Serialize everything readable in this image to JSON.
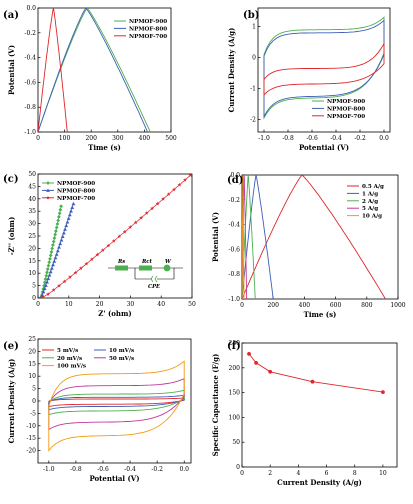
{
  "chart_data": [
    {
      "panel": "(a)",
      "type": "line",
      "xlabel": "Time (s)",
      "ylabel": "Potential (V)",
      "xlim": [
        0,
        500
      ],
      "ylim": [
        -1.0,
        0.0
      ],
      "xticks": [
        "0",
        "100",
        "200",
        "300",
        "400",
        "500"
      ],
      "yticks": [
        "-1.0",
        "-0.8",
        "-0.6",
        "-0.4",
        "-0.2",
        "0.0"
      ],
      "legend_position": "top-right",
      "series": [
        {
          "name": "NPMOF-900",
          "color": "#4caf50",
          "shape": "gcd",
          "t_peak": 185,
          "t_end": 422
        },
        {
          "name": "NPMOF-800",
          "color": "#3d5fb8",
          "shape": "gcd",
          "t_peak": 180,
          "t_end": 412
        },
        {
          "name": "NPMOF-700",
          "color": "#e0262a",
          "shape": "gcd",
          "t_peak": 58,
          "t_end": 110
        }
      ]
    },
    {
      "panel": "(b)",
      "type": "line",
      "xlabel": "Potential (V)",
      "ylabel": "Current Density (A/g)",
      "xlim": [
        -1.05,
        0.05
      ],
      "ylim": [
        -2.4,
        1.6
      ],
      "xticks": [
        "-1.0",
        "-0.8",
        "-0.6",
        "-0.4",
        "-0.2",
        "0.0"
      ],
      "yticks": [
        "-2",
        "-1",
        "0",
        "1"
      ],
      "legend_position": "bottom-right",
      "series": [
        {
          "name": "NPMOF-900",
          "color": "#4caf50",
          "shape": "cv",
          "top": 0.9,
          "bottom": -1.3,
          "top_start": 0.1,
          "bottom_start": -1.95,
          "top_end": 1.3,
          "bottom_end": 0.15
        },
        {
          "name": "NPMOF-800",
          "color": "#3d5fb8",
          "shape": "cv",
          "top": 0.8,
          "bottom": -1.25,
          "top_start": 0.05,
          "bottom_start": -1.9,
          "top_end": 1.2,
          "bottom_end": 0.1
        },
        {
          "name": "NPMOF-700",
          "color": "#e0262a",
          "shape": "cv",
          "top": -0.35,
          "bottom": -0.85,
          "top_start": -0.7,
          "bottom_start": -1.2,
          "top_end": 0.45,
          "bottom_end": -0.2
        }
      ]
    },
    {
      "panel": "(c)",
      "type": "scatter",
      "xlabel": "Z' (ohm)",
      "ylabel": "-Z'' (ohm)",
      "xlim": [
        0,
        50
      ],
      "ylim": [
        0,
        50
      ],
      "xticks": [
        "0",
        "10",
        "20",
        "30",
        "40",
        "50"
      ],
      "yticks": [
        "0",
        "5",
        "10",
        "15",
        "20",
        "25",
        "30",
        "35",
        "40",
        "45",
        "50"
      ],
      "legend_position": "top-left",
      "circuit": {
        "labels": [
          "Rs",
          "Rct",
          "W",
          "CPE"
        ]
      },
      "series": [
        {
          "name": "NPMOF-900",
          "color": "#4caf50",
          "marker": "diamond",
          "x_start": 1.0,
          "x_end": 7.5,
          "y_end": 37
        },
        {
          "name": "NPMOF-800",
          "color": "#3d5fb8",
          "marker": "triangle",
          "x_start": 1.0,
          "x_end": 11.5,
          "y_end": 38
        },
        {
          "name": "NPMOF-700",
          "color": "#e0262a",
          "marker": "star",
          "x_start": 1.5,
          "x_end": 49.5,
          "y_end": 49.5
        }
      ]
    },
    {
      "panel": "(d)",
      "type": "line",
      "xlabel": "Time (s)",
      "ylabel": "Potential (V)",
      "xlim": [
        0,
        1000
      ],
      "ylim": [
        -1.0,
        0.0
      ],
      "xticks": [
        "0",
        "200",
        "400",
        "600",
        "800",
        "1000"
      ],
      "yticks": [
        "-1.0",
        "-0.8",
        "-0.6",
        "-0.4",
        "-0.2",
        "0.0"
      ],
      "legend_position": "top-right",
      "series": [
        {
          "name": "0.5 A/g",
          "color": "#e0262a",
          "shape": "gcd",
          "t_peak": 385,
          "t_end": 920
        },
        {
          "name": "1 A/g",
          "color": "#3d5fb8",
          "shape": "gcd",
          "t_peak": 90,
          "t_end": 200
        },
        {
          "name": "2 A/g",
          "color": "#4caf50",
          "shape": "gcd",
          "t_peak": 40,
          "t_end": 85
        },
        {
          "name": "5 A/g",
          "color": "#c0389c",
          "shape": "gcd",
          "t_peak": 14,
          "t_end": 30
        },
        {
          "name": "10 A/g",
          "color": "#f39c12",
          "shape": "gcd",
          "t_peak": 6,
          "t_end": 13
        }
      ]
    },
    {
      "panel": "(e)",
      "type": "line",
      "xlabel": "Potential (V)",
      "ylabel": "Current Density (A/g)",
      "xlim": [
        -1.08,
        0.05
      ],
      "ylim": [
        -25,
        25
      ],
      "xticks": [
        "-1.0",
        "-0.8",
        "-0.6",
        "-0.4",
        "-0.2",
        "0.0"
      ],
      "yticks": [
        "-20",
        "-15",
        "-10",
        "-5",
        "0",
        "5",
        "10",
        "15",
        "20",
        "25"
      ],
      "legend_position": "top-left",
      "series": [
        {
          "name": "5 mV/s",
          "color": "#e0262a",
          "shape": "cv",
          "top": 0.8,
          "bottom": -1.3,
          "top_start": 0.0,
          "bottom_start": -2.2,
          "top_end": 1.2,
          "bottom_end": 0.3
        },
        {
          "name": "10 mV/s",
          "color": "#3d5fb8",
          "shape": "cv",
          "top": 1.5,
          "bottom": -2.2,
          "top_start": -0.2,
          "bottom_start": -3.5,
          "top_end": 2.3,
          "bottom_end": 0.5
        },
        {
          "name": "20 mV/s",
          "color": "#4caf50",
          "shape": "cv",
          "top": 2.8,
          "bottom": -4.0,
          "top_start": -0.5,
          "bottom_start": -5.5,
          "top_end": 4.3,
          "bottom_end": 1.0
        },
        {
          "name": "50 mV/s",
          "color": "#c0389c",
          "shape": "cv",
          "top": 6.2,
          "bottom": -8.5,
          "top_start": -1.0,
          "bottom_start": -11.5,
          "top_end": 9.0,
          "bottom_end": 2.0
        },
        {
          "name": "100 mV/s",
          "color": "#f39c12",
          "shape": "cv",
          "top": 11.0,
          "bottom": -14.0,
          "top_start": -2.0,
          "bottom_start": -20.0,
          "top_end": 16.0,
          "bottom_end": 3.0
        }
      ]
    },
    {
      "panel": "(f)",
      "type": "line",
      "xlabel": "Current Density (A/g)",
      "ylabel": "Specific Capacitance (F/g)",
      "xlim": [
        0,
        11
      ],
      "ylim": [
        0,
        250
      ],
      "xticks": [
        "0",
        "2",
        "4",
        "6",
        "8",
        "10"
      ],
      "yticks": [
        "0",
        "50",
        "100",
        "150",
        "200",
        "250"
      ],
      "series": [
        {
          "name": "",
          "color": "#e0262a",
          "marker": "circle",
          "x": [
            0.5,
            1,
            2,
            5,
            10
          ],
          "y": [
            228,
            210,
            192,
            172,
            151
          ]
        }
      ]
    }
  ]
}
